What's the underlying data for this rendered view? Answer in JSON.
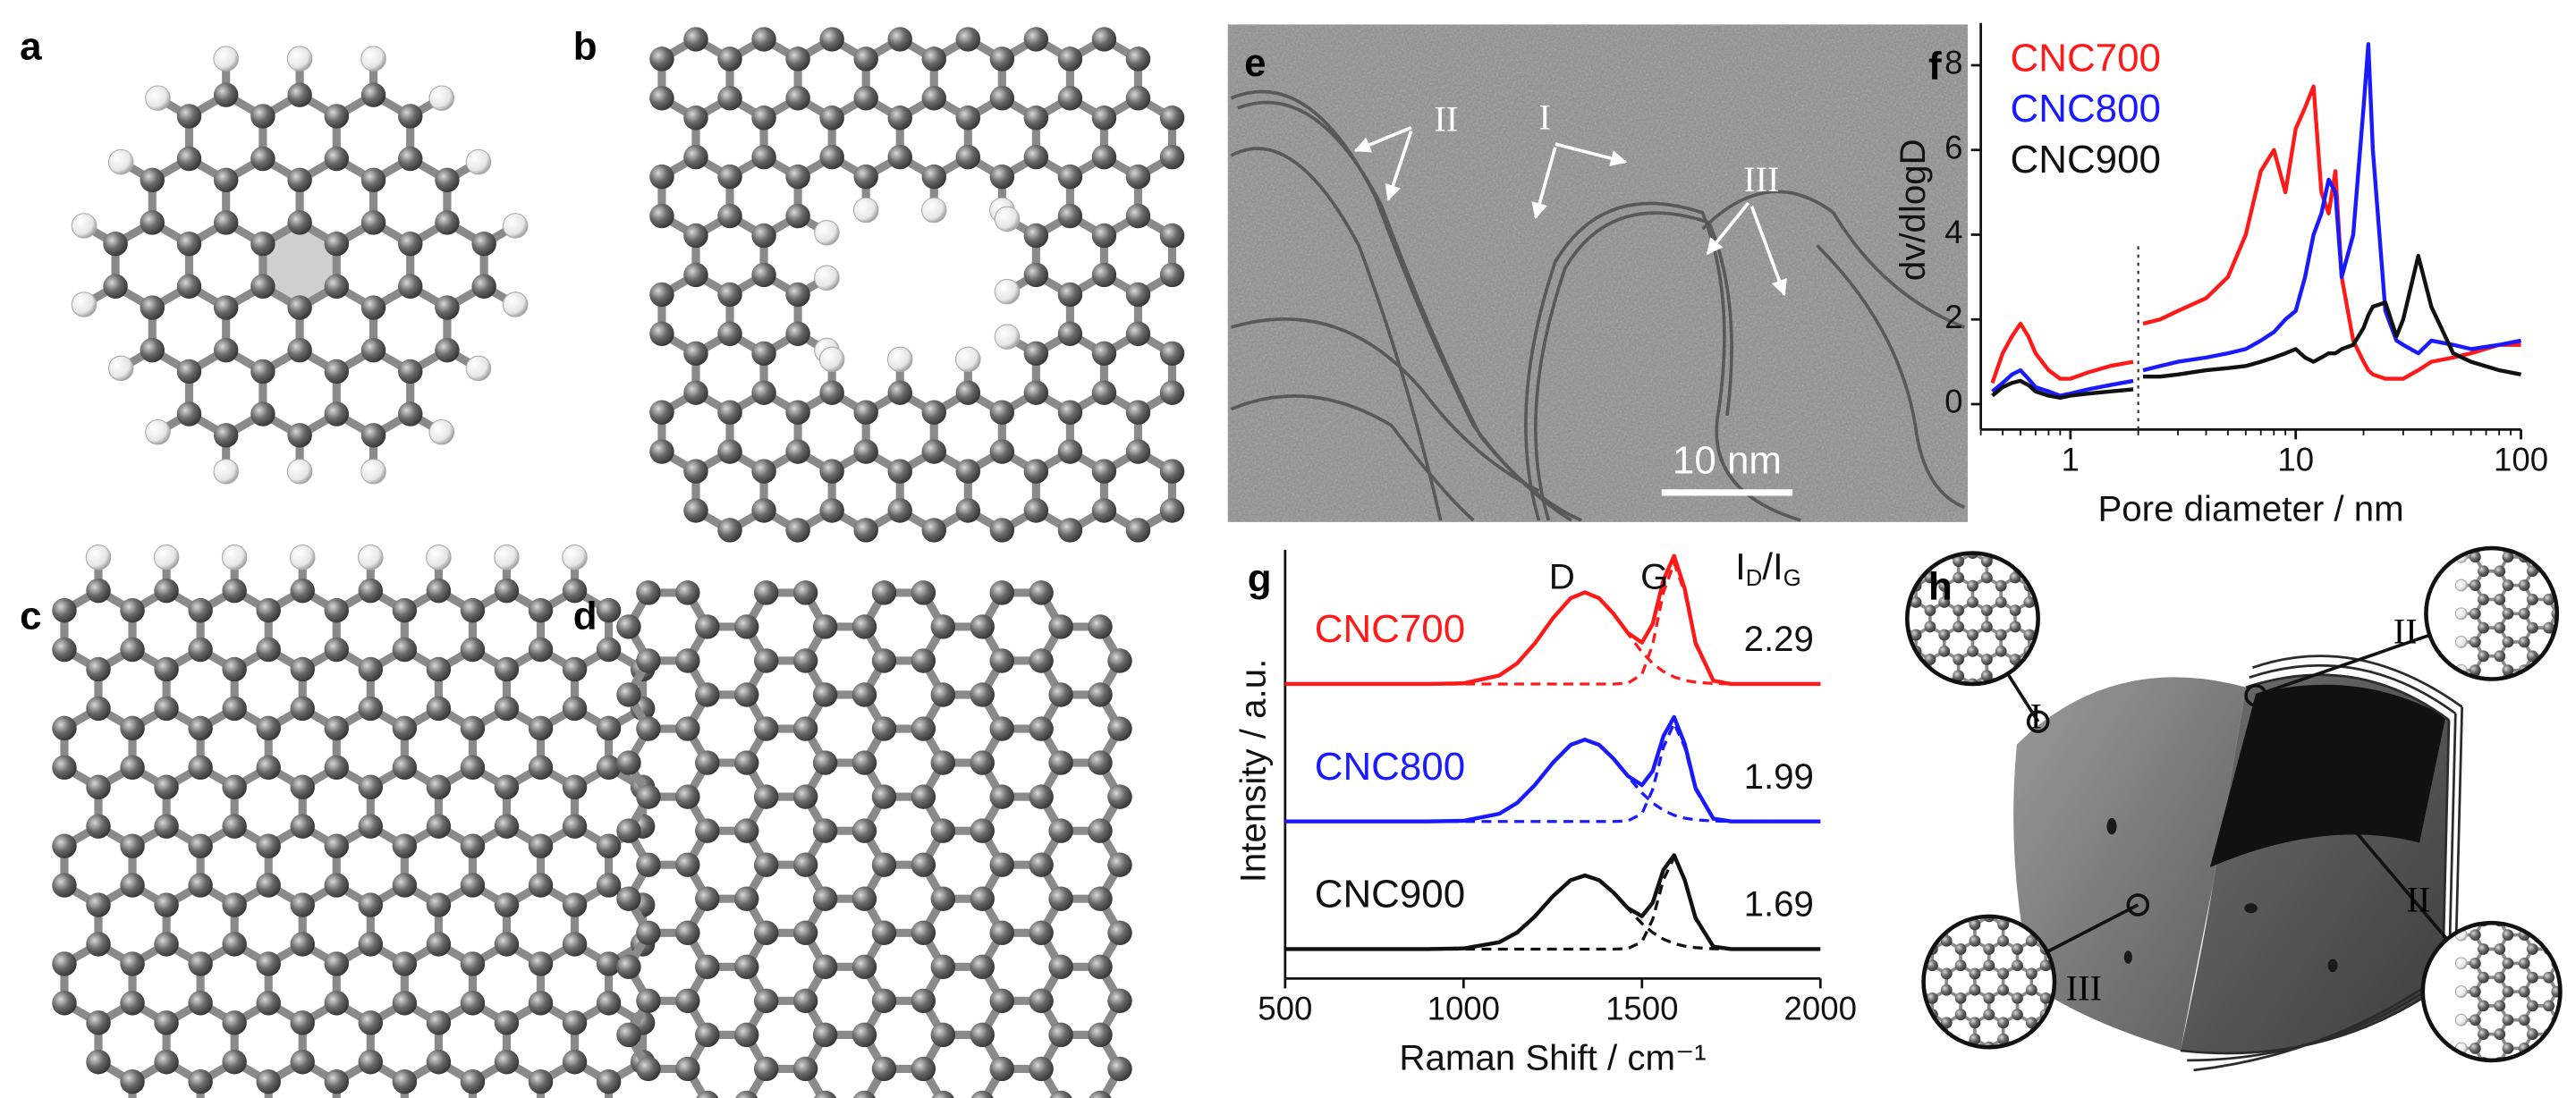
{
  "panels": {
    "labels": [
      "a",
      "b",
      "c",
      "d",
      "e",
      "f",
      "g",
      "h"
    ]
  },
  "tem": {
    "annotations": [
      "II",
      "I",
      "III"
    ],
    "scale_bar": "10 nm"
  },
  "diagram": {
    "inset_labels": [
      "I",
      "II",
      "III",
      "II"
    ]
  },
  "chart_data": [
    {
      "type": "line",
      "xlabel": "Pore diameter / nm",
      "ylabel": "dv/dlogD",
      "xscale": "log",
      "x": [
        0.45,
        0.5,
        0.55,
        0.6,
        0.65,
        0.7,
        0.8,
        0.9,
        1,
        1.2,
        1.5,
        1.9,
        2,
        2.1,
        2.5,
        3,
        4,
        5,
        6,
        7,
        8,
        9,
        10,
        11,
        12,
        13,
        14,
        15,
        16,
        18,
        20,
        21,
        22,
        25,
        28,
        30,
        35,
        40,
        50,
        60,
        80,
        100
      ],
      "xlim": [
        0.4,
        100
      ],
      "xticks": [
        1,
        10,
        100
      ],
      "ylim": [
        -0.6,
        9
      ],
      "yticks": [
        0,
        2,
        4,
        6,
        8
      ],
      "legend": "upper left",
      "divider_x": 2,
      "series": [
        {
          "name": "CNC700",
          "color": "#ff1a1a",
          "values": [
            0.5,
            1.2,
            1.6,
            1.9,
            1.6,
            1.2,
            0.8,
            0.6,
            0.6,
            0.75,
            0.9,
            1.0,
            null,
            1.9,
            2.0,
            2.2,
            2.5,
            3.0,
            4.0,
            5.5,
            6.0,
            5.0,
            6.5,
            7.0,
            7.5,
            5.0,
            4.5,
            5.5,
            3.0,
            1.5,
            1.0,
            0.8,
            0.7,
            0.6,
            0.6,
            0.6,
            0.8,
            1.0,
            1.1,
            1.2,
            1.4,
            1.4
          ]
        },
        {
          "name": "CNC800",
          "color": "#1a1aff",
          "values": [
            0.3,
            0.5,
            0.7,
            0.8,
            0.6,
            0.4,
            0.3,
            0.2,
            0.25,
            0.35,
            0.45,
            0.55,
            null,
            0.8,
            0.9,
            1.0,
            1.1,
            1.2,
            1.3,
            1.5,
            1.7,
            2.0,
            2.2,
            3.0,
            4.0,
            4.5,
            5.3,
            5.0,
            3.0,
            4.0,
            7.0,
            8.5,
            6.0,
            2.2,
            1.5,
            1.4,
            1.2,
            1.5,
            1.4,
            1.3,
            1.4,
            1.5
          ]
        },
        {
          "name": "CNC900",
          "color": "#111111",
          "values": [
            0.2,
            0.4,
            0.5,
            0.55,
            0.45,
            0.3,
            0.2,
            0.15,
            0.2,
            0.25,
            0.3,
            0.35,
            null,
            0.65,
            0.65,
            0.7,
            0.8,
            0.85,
            0.9,
            1.0,
            1.1,
            1.2,
            1.3,
            1.1,
            1.0,
            1.1,
            1.2,
            1.2,
            1.3,
            1.4,
            1.8,
            2.1,
            2.3,
            2.4,
            1.6,
            2.0,
            3.5,
            2.3,
            1.2,
            1.0,
            0.8,
            0.7
          ]
        }
      ]
    },
    {
      "type": "line",
      "xlabel": "Raman Shift / cm⁻¹",
      "ylabel": "Intensity / a.u.",
      "x": [
        500,
        700,
        900,
        1000,
        1100,
        1150,
        1200,
        1250,
        1300,
        1340,
        1380,
        1420,
        1460,
        1500,
        1530,
        1560,
        1590,
        1620,
        1650,
        1700,
        1750,
        1800,
        1900,
        2000
      ],
      "xlim": [
        500,
        2000
      ],
      "xticks": [
        500,
        1000,
        1500,
        2000
      ],
      "ylim": [
        0,
        27
      ],
      "peak_labels": [
        "D",
        "G"
      ],
      "ratio_label": {
        "text": "I",
        "sub": "D",
        "text2": "/I",
        "sub2": "G"
      },
      "series": [
        {
          "name": "CNC700",
          "color": "#ff1a1a",
          "ratio": 2.29,
          "values": [
            18,
            18,
            18,
            18.04,
            18.52,
            19.26,
            20.49,
            22.01,
            23.24,
            23.6,
            23.24,
            22.3,
            21.13,
            20.53,
            21.67,
            24.35,
            25.83,
            23.81,
            20.52,
            18.2,
            18,
            18,
            18,
            18
          ]
        },
        {
          "color": "#ff1a1a",
          "dashed": true,
          "values": [
            18,
            18,
            18,
            18.04,
            18.52,
            19.26,
            20.49,
            22.01,
            23.24,
            23.6,
            23.24,
            22.3,
            21.09,
            19.94,
            19.26,
            18.76,
            18.43,
            18.22,
            18.11,
            18.03,
            18,
            18,
            18,
            18
          ]
        },
        {
          "color": "#ff1a1a",
          "dashed": true,
          "values": [
            18,
            18,
            18,
            18,
            18,
            18,
            18,
            18,
            18,
            18,
            18,
            18,
            18.04,
            18.59,
            20.41,
            23.59,
            25.4,
            23.59,
            20.41,
            18.17,
            18,
            18,
            18,
            18
          ]
        },
        {
          "name": "CNC800",
          "color": "#1a1aff",
          "ratio": 1.99,
          "values": [
            9.6,
            9.6,
            9.6,
            9.64,
            10.07,
            10.73,
            11.83,
            13.18,
            14.28,
            14.6,
            14.28,
            13.44,
            12.39,
            11.82,
            12.68,
            14.81,
            15.98,
            14.33,
            11.65,
            9.77,
            9.6,
            9.6,
            9.6,
            9.6
          ]
        },
        {
          "color": "#1a1aff",
          "dashed": true,
          "values": [
            9.6,
            9.6,
            9.6,
            9.64,
            10.07,
            10.73,
            11.83,
            13.18,
            14.28,
            14.6,
            14.28,
            13.44,
            12.36,
            11.34,
            10.73,
            10.28,
            9.98,
            9.8,
            9.7,
            9.63,
            9.6,
            9.6,
            9.6,
            9.6
          ]
        },
        {
          "color": "#1a1aff",
          "dashed": true,
          "values": [
            9.6,
            9.6,
            9.6,
            9.6,
            9.6,
            9.6,
            9.6,
            9.6,
            9.6,
            9.6,
            9.6,
            9.6,
            9.63,
            10.08,
            11.55,
            14.13,
            15.6,
            14.13,
            11.55,
            9.74,
            9.6,
            9.6,
            9.6,
            9.6
          ]
        },
        {
          "name": "CNC900",
          "color": "#111111",
          "ratio": 1.69,
          "values": [
            1.8,
            1.8,
            1.8,
            1.84,
            2.22,
            2.81,
            3.8,
            5.02,
            6.01,
            6.3,
            6.01,
            5.26,
            4.31,
            3.81,
            4.63,
            6.64,
            7.54,
            6.01,
            3.71,
            1.95,
            1.8,
            1.8,
            1.8,
            1.8
          ]
        },
        {
          "color": "#111111",
          "dashed": true,
          "values": [
            1.8,
            1.8,
            1.8,
            1.84,
            2.22,
            2.81,
            3.8,
            5.02,
            6.01,
            6.3,
            6.01,
            5.26,
            4.28,
            3.36,
            2.81,
            2.41,
            2.14,
            1.98,
            1.89,
            1.82,
            1.8,
            1.8,
            1.8,
            1.8
          ]
        },
        {
          "color": "#111111",
          "dashed": true,
          "values": [
            1.8,
            1.8,
            1.8,
            1.8,
            1.8,
            1.8,
            1.8,
            1.8,
            1.8,
            1.8,
            1.8,
            1.8,
            1.83,
            2.25,
            3.62,
            6.03,
            7.4,
            6.03,
            3.62,
            1.93,
            1.8,
            1.8,
            1.8,
            1.8
          ]
        }
      ]
    }
  ]
}
